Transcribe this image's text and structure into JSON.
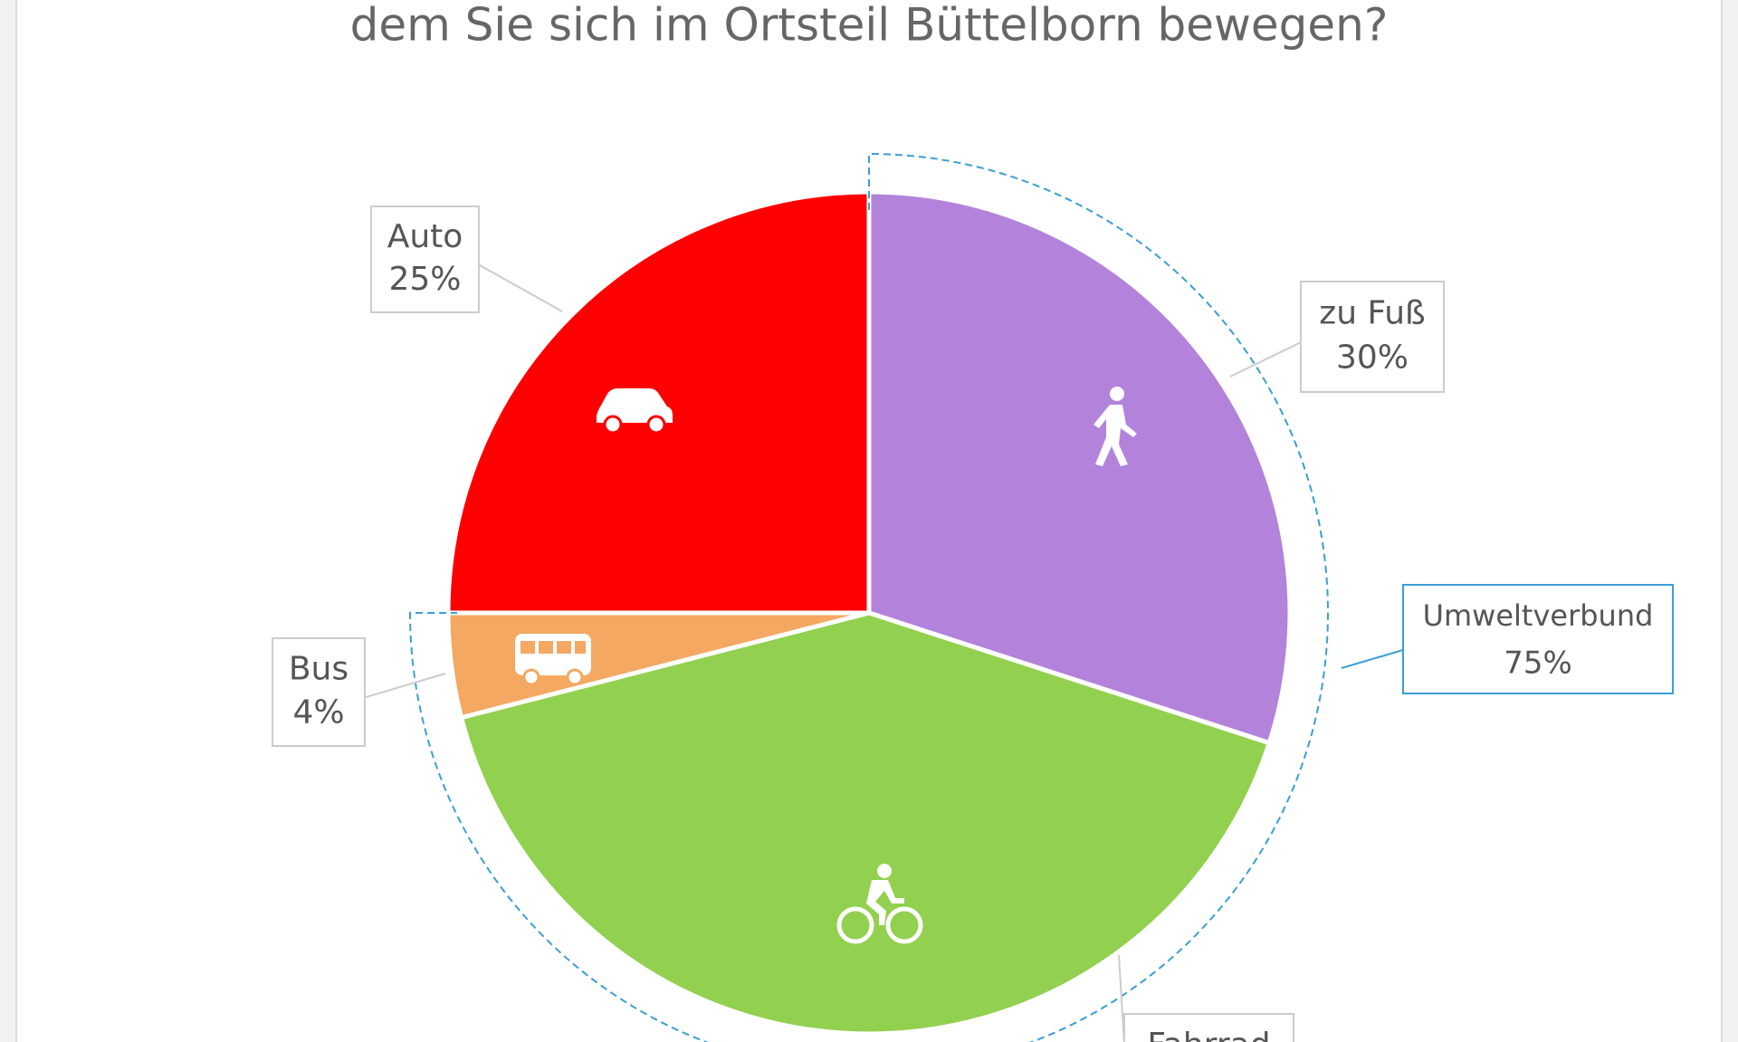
{
  "chart_data": {
    "type": "pie",
    "title": "dem Sie sich im Ortsteil Büttelborn bewegen?",
    "categories": [
      "zu Fuß",
      "Fahrrad",
      "Bus",
      "Auto"
    ],
    "values": [
      30,
      41,
      4,
      25
    ],
    "value_labels": [
      "30%",
      null,
      "4%",
      "25%"
    ],
    "colors": [
      "#b383db",
      "#92d050",
      "#f4a862",
      "#ff0000"
    ],
    "group": {
      "label": "Umweltverbund",
      "value": 75,
      "value_label": "75%"
    }
  }
}
